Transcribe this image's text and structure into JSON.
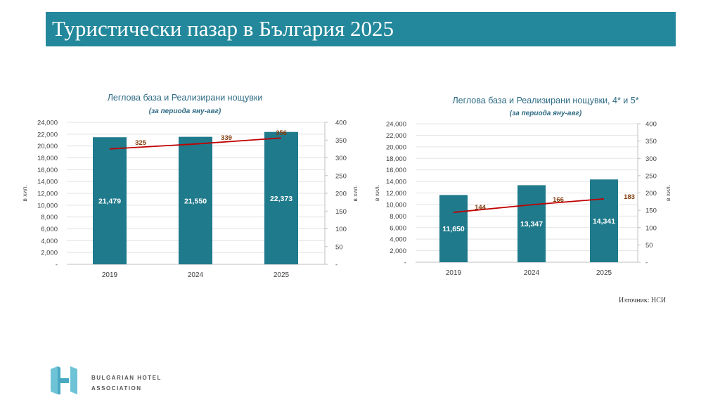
{
  "page": {
    "title": "Туристически пазар в България 2025",
    "source": "Източник: НСИ",
    "logo": {
      "line1": "BULGARIAN HOTEL",
      "line2": "ASSOCIATION"
    }
  },
  "colors": {
    "header": "#23889b",
    "bar": "#1f7a8c",
    "line": "#c00000",
    "line_label": "#843c0c",
    "title": "#2e6b84"
  },
  "chart_data": [
    {
      "type": "bar",
      "title": "Леглова база и Реализирани нощувки",
      "subtitle": "(за периода яну-авг)",
      "categories": [
        "2019",
        "2024",
        "2025"
      ],
      "ylabel": "в хил.",
      "y2label": "в хил.",
      "ylim": [
        0,
        24000
      ],
      "y2lim": [
        0,
        400
      ],
      "yticks": [
        "-",
        "2,000",
        "4,000",
        "6,000",
        "8,000",
        "10,000",
        "12,000",
        "14,000",
        "16,000",
        "18,000",
        "20,000",
        "22,000",
        "24,000"
      ],
      "y2ticks": [
        "-",
        "50",
        "100",
        "150",
        "200",
        "250",
        "300",
        "350",
        "400"
      ],
      "series": [
        {
          "kind": "bar",
          "values": [
            21479,
            21550,
            22373
          ],
          "labels": [
            "21,479",
            "21,550",
            "22,373"
          ]
        },
        {
          "kind": "line",
          "axis": "right",
          "values": [
            325,
            339,
            356
          ],
          "labels": [
            "325",
            "339",
            "356"
          ]
        }
      ]
    },
    {
      "type": "bar",
      "title": "Леглова база и Реализирани нощувки, 4* и 5*",
      "subtitle": "(за периода яну-авг)",
      "categories": [
        "2019",
        "2024",
        "2025"
      ],
      "ylabel": "в хил.",
      "y2label": "в хил.",
      "ylim": [
        0,
        24000
      ],
      "y2lim": [
        0,
        400
      ],
      "yticks": [
        "-",
        "2,000",
        "4,000",
        "6,000",
        "8,000",
        "10,000",
        "12,000",
        "14,000",
        "16,000",
        "18,000",
        "20,000",
        "22,000",
        "24,000"
      ],
      "y2ticks": [
        "-",
        "50",
        "100",
        "150",
        "200",
        "250",
        "300",
        "350",
        "400"
      ],
      "series": [
        {
          "kind": "bar",
          "values": [
            11650,
            13347,
            14341
          ],
          "labels": [
            "11,650",
            "13,347",
            "14,341"
          ]
        },
        {
          "kind": "line",
          "axis": "right",
          "values": [
            144,
            166,
            183
          ],
          "labels": [
            "144",
            "166",
            "183"
          ]
        }
      ]
    }
  ]
}
